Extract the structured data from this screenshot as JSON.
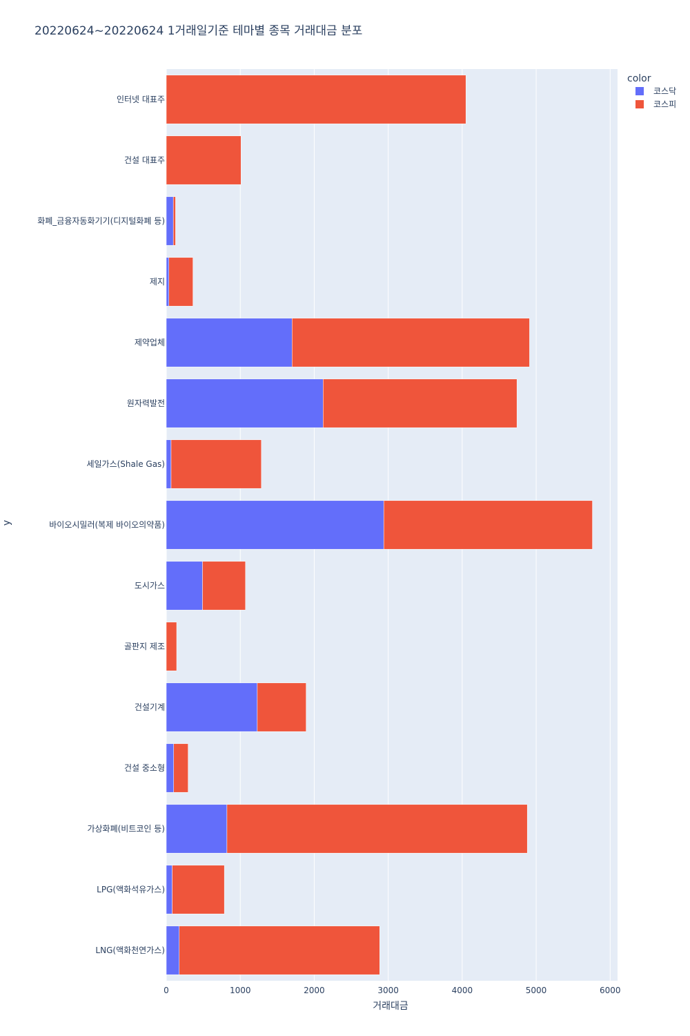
{
  "chart_data": {
    "type": "bar",
    "orientation": "horizontal",
    "barmode": "stack",
    "title": "20220624~20220624 1거래일기준 테마별 종목 거래대금 분포",
    "xlabel": "거래대금",
    "ylabel": "y",
    "xlim": [
      0,
      6100
    ],
    "xticks": [
      0,
      1000,
      2000,
      3000,
      4000,
      5000,
      6000
    ],
    "grid": true,
    "legend_title": "color",
    "legend_position": "top-right",
    "categories": [
      "인터넷 대표주",
      "건설 대표주",
      "화폐_금융자동화기기(디지털화폐 등)",
      "제지",
      "제약업체",
      "원자력발전",
      "세일가스(Shale Gas)",
      "바이오시밀러(복제 바이오의약품)",
      "도시가스",
      "골판지 제조",
      "건설기계",
      "건설 중소형",
      "가상화폐(비트코인 등)",
      "LPG(액화석유가스)",
      "LNG(액화천연가스)"
    ],
    "series": [
      {
        "name": "코스닥",
        "color": "#636efa",
        "values": [
          0,
          0,
          95,
          35,
          1700,
          2120,
          65,
          2940,
          490,
          0,
          1230,
          100,
          820,
          80,
          175
        ]
      },
      {
        "name": "코스피",
        "color": "#ef553b",
        "values": [
          4050,
          1010,
          30,
          325,
          3210,
          2620,
          1220,
          2820,
          580,
          140,
          660,
          195,
          4060,
          705,
          2710
        ]
      }
    ]
  },
  "colors": {
    "plot_bg": "#e5ecf6",
    "grid": "#ffffff",
    "text": "#2a3f5f"
  }
}
